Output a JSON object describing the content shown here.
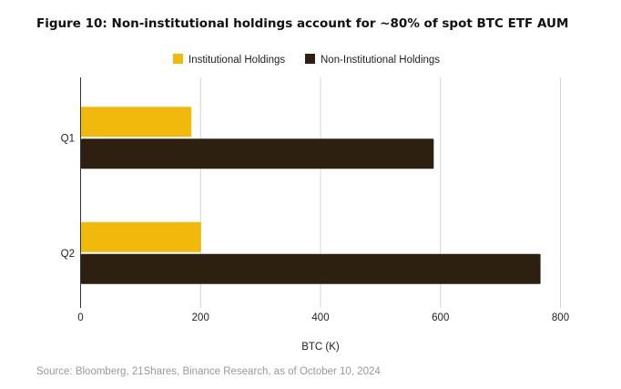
{
  "chart_data": {
    "type": "bar",
    "orientation": "horizontal",
    "title": "Figure 10: Non-institutional holdings account for ~80% of spot BTC ETF AUM",
    "categories": [
      "Q1",
      "Q2"
    ],
    "series": [
      {
        "name": "Institutional Holdings",
        "values": [
          184,
          200
        ],
        "color": "#F0B90B"
      },
      {
        "name": "Non-Institutional Holdings",
        "values": [
          588,
          766
        ],
        "color": "#2D2010"
      }
    ],
    "xlabel": "BTC (K)",
    "ylabel": "",
    "xlim": [
      0,
      800
    ],
    "xticks": [
      0,
      200,
      400,
      600,
      800
    ],
    "grid": true,
    "legend": "top",
    "source": "Source: Bloomberg, 21Shares, Binance Research, as of October 10, 2024"
  }
}
